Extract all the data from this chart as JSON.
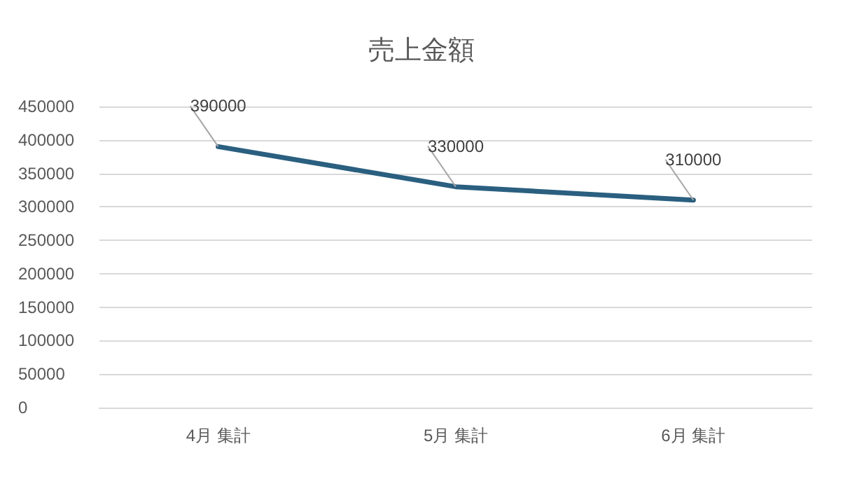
{
  "chart_data": {
    "type": "line",
    "title": "売上金額",
    "categories": [
      "4月 集計",
      "5月 集計",
      "6月 集計"
    ],
    "values": [
      390000,
      330000,
      310000
    ],
    "color": "#2a5f7f",
    "ylim": [
      0,
      450000
    ],
    "yticks": [
      0,
      50000,
      100000,
      150000,
      200000,
      250000,
      300000,
      350000,
      400000,
      450000
    ],
    "grid": "y",
    "marker": "none",
    "line_style": "solid",
    "data_labels": true
  }
}
